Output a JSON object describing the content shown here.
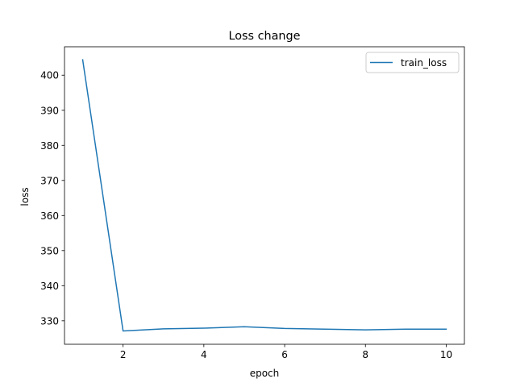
{
  "chart_data": {
    "type": "line",
    "title": "Loss change",
    "xlabel": "epoch",
    "ylabel": "loss",
    "xlim": [
      0.55,
      10.45
    ],
    "ylim": [
      323.3,
      408.1
    ],
    "xticks": [
      2,
      4,
      6,
      8,
      10
    ],
    "yticks": [
      330,
      340,
      350,
      360,
      370,
      380,
      390,
      400
    ],
    "grid": false,
    "legend_position": "top-right",
    "series": [
      {
        "name": "train_loss",
        "color": "#1f77b4",
        "x": [
          1,
          2,
          3,
          4,
          5,
          6,
          7,
          8,
          9,
          10
        ],
        "y": [
          404.4,
          327.1,
          327.7,
          327.9,
          328.3,
          327.8,
          327.6,
          327.4,
          327.6,
          327.6
        ]
      }
    ]
  }
}
